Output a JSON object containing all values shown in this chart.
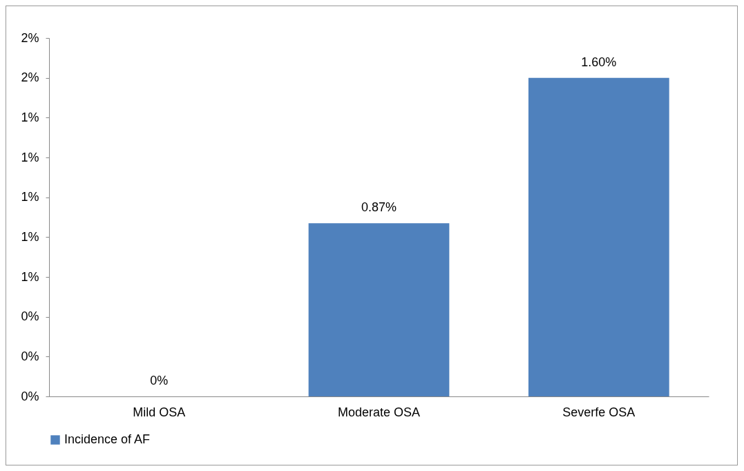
{
  "chart_data": {
    "type": "bar",
    "categories": [
      "Mild OSA",
      "Moderate OSA",
      "Severfe OSA"
    ],
    "series": [
      {
        "name": "Incidence of AF",
        "color": "#4f81bd",
        "values": [
          0,
          0.87,
          1.6
        ],
        "value_labels": [
          "0%",
          "0.87%",
          "1.60%"
        ]
      }
    ],
    "ylim": [
      0,
      1.8
    ],
    "yticks": [
      {
        "value": 0,
        "label": "0%"
      },
      {
        "value": 0.2,
        "label": "0%"
      },
      {
        "value": 0.4,
        "label": "0%"
      },
      {
        "value": 0.6,
        "label": "1%"
      },
      {
        "value": 0.8,
        "label": "1%"
      },
      {
        "value": 1.0,
        "label": "1%"
      },
      {
        "value": 1.2,
        "label": "1%"
      },
      {
        "value": 1.4,
        "label": "1%"
      },
      {
        "value": 1.6,
        "label": "2%"
      },
      {
        "value": 1.8,
        "label": "2%"
      }
    ],
    "grid": false,
    "legend": "bottom"
  }
}
